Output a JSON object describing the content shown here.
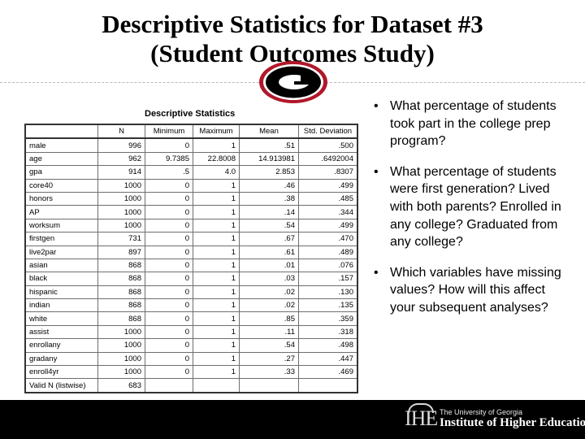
{
  "slide": {
    "title_line1": "Descriptive Statistics for Dataset #3",
    "title_line2": "(Student Outcomes Study)",
    "logo_letter": "G"
  },
  "table": {
    "title": "Descriptive Statistics",
    "headers": [
      "",
      "N",
      "Minimum",
      "Maximum",
      "Mean",
      "Std. Deviation"
    ],
    "rows": [
      [
        "male",
        "996",
        "0",
        "1",
        ".51",
        ".500"
      ],
      [
        "age",
        "962",
        "9.7385",
        "22.8008",
        "14.913981",
        ".6492004"
      ],
      [
        "gpa",
        "914",
        ".5",
        "4.0",
        "2.853",
        ".8307"
      ],
      [
        "core40",
        "1000",
        "0",
        "1",
        ".46",
        ".499"
      ],
      [
        "honors",
        "1000",
        "0",
        "1",
        ".38",
        ".485"
      ],
      [
        "AP",
        "1000",
        "0",
        "1",
        ".14",
        ".344"
      ],
      [
        "worksum",
        "1000",
        "0",
        "1",
        ".54",
        ".499"
      ],
      [
        "firstgen",
        "731",
        "0",
        "1",
        ".67",
        ".470"
      ],
      [
        "live2par",
        "897",
        "0",
        "1",
        ".61",
        ".489"
      ],
      [
        "asian",
        "868",
        "0",
        "1",
        ".01",
        ".076"
      ],
      [
        "black",
        "868",
        "0",
        "1",
        ".03",
        ".157"
      ],
      [
        "hispanic",
        "868",
        "0",
        "1",
        ".02",
        ".130"
      ],
      [
        "indian",
        "868",
        "0",
        "1",
        ".02",
        ".135"
      ],
      [
        "white",
        "868",
        "0",
        "1",
        ".85",
        ".359"
      ],
      [
        "assist",
        "1000",
        "0",
        "1",
        ".11",
        ".318"
      ],
      [
        "enrollany",
        "1000",
        "0",
        "1",
        ".54",
        ".498"
      ],
      [
        "gradany",
        "1000",
        "0",
        "1",
        ".27",
        ".447"
      ],
      [
        "enroll4yr",
        "1000",
        "0",
        "1",
        ".33",
        ".469"
      ],
      [
        "Valid N (listwise)",
        "683",
        "",
        "",
        "",
        ""
      ]
    ]
  },
  "bullets": [
    "What percentage of students took part in the college prep program?",
    "What percentage of students were first generation? Lived with both parents?  Enrolled in any college?  Graduated from any college?",
    "Which variables have missing values?  How will this affect your subsequent analyses?"
  ],
  "footer": {
    "mark": "IHE",
    "subtitle": "The University of Georgia",
    "name": "Institute of Higher Education"
  },
  "colors": {
    "logo_red": "#b0182a",
    "logo_black": "#000000",
    "footer_bg": "#000000"
  },
  "icons": {
    "logo": "georgia-g-logo-icon",
    "bullet": "bullet-dot-icon"
  }
}
